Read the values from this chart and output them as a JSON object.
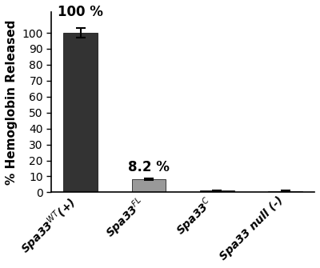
{
  "values": [
    100.0,
    8.2,
    1.0,
    0.8
  ],
  "errors": [
    3.2,
    0.7,
    0.4,
    0.3
  ],
  "bar_colors": [
    "#333333",
    "#999999",
    "#2a2a2a",
    "#2a2a2a"
  ],
  "bar_labels": [
    "100 %",
    "8.2 %",
    "",
    ""
  ],
  "ylabel": "% Hemoglobin Released",
  "ylim": [
    0,
    113
  ],
  "yticks": [
    0,
    10,
    20,
    30,
    40,
    50,
    60,
    70,
    80,
    90,
    100
  ],
  "background_color": "#ffffff",
  "ylabel_fontsize": 11,
  "tick_fontsize": 10,
  "annotation_fontsize": 12,
  "xtick_fontsize": 10,
  "bar_width": 0.5
}
